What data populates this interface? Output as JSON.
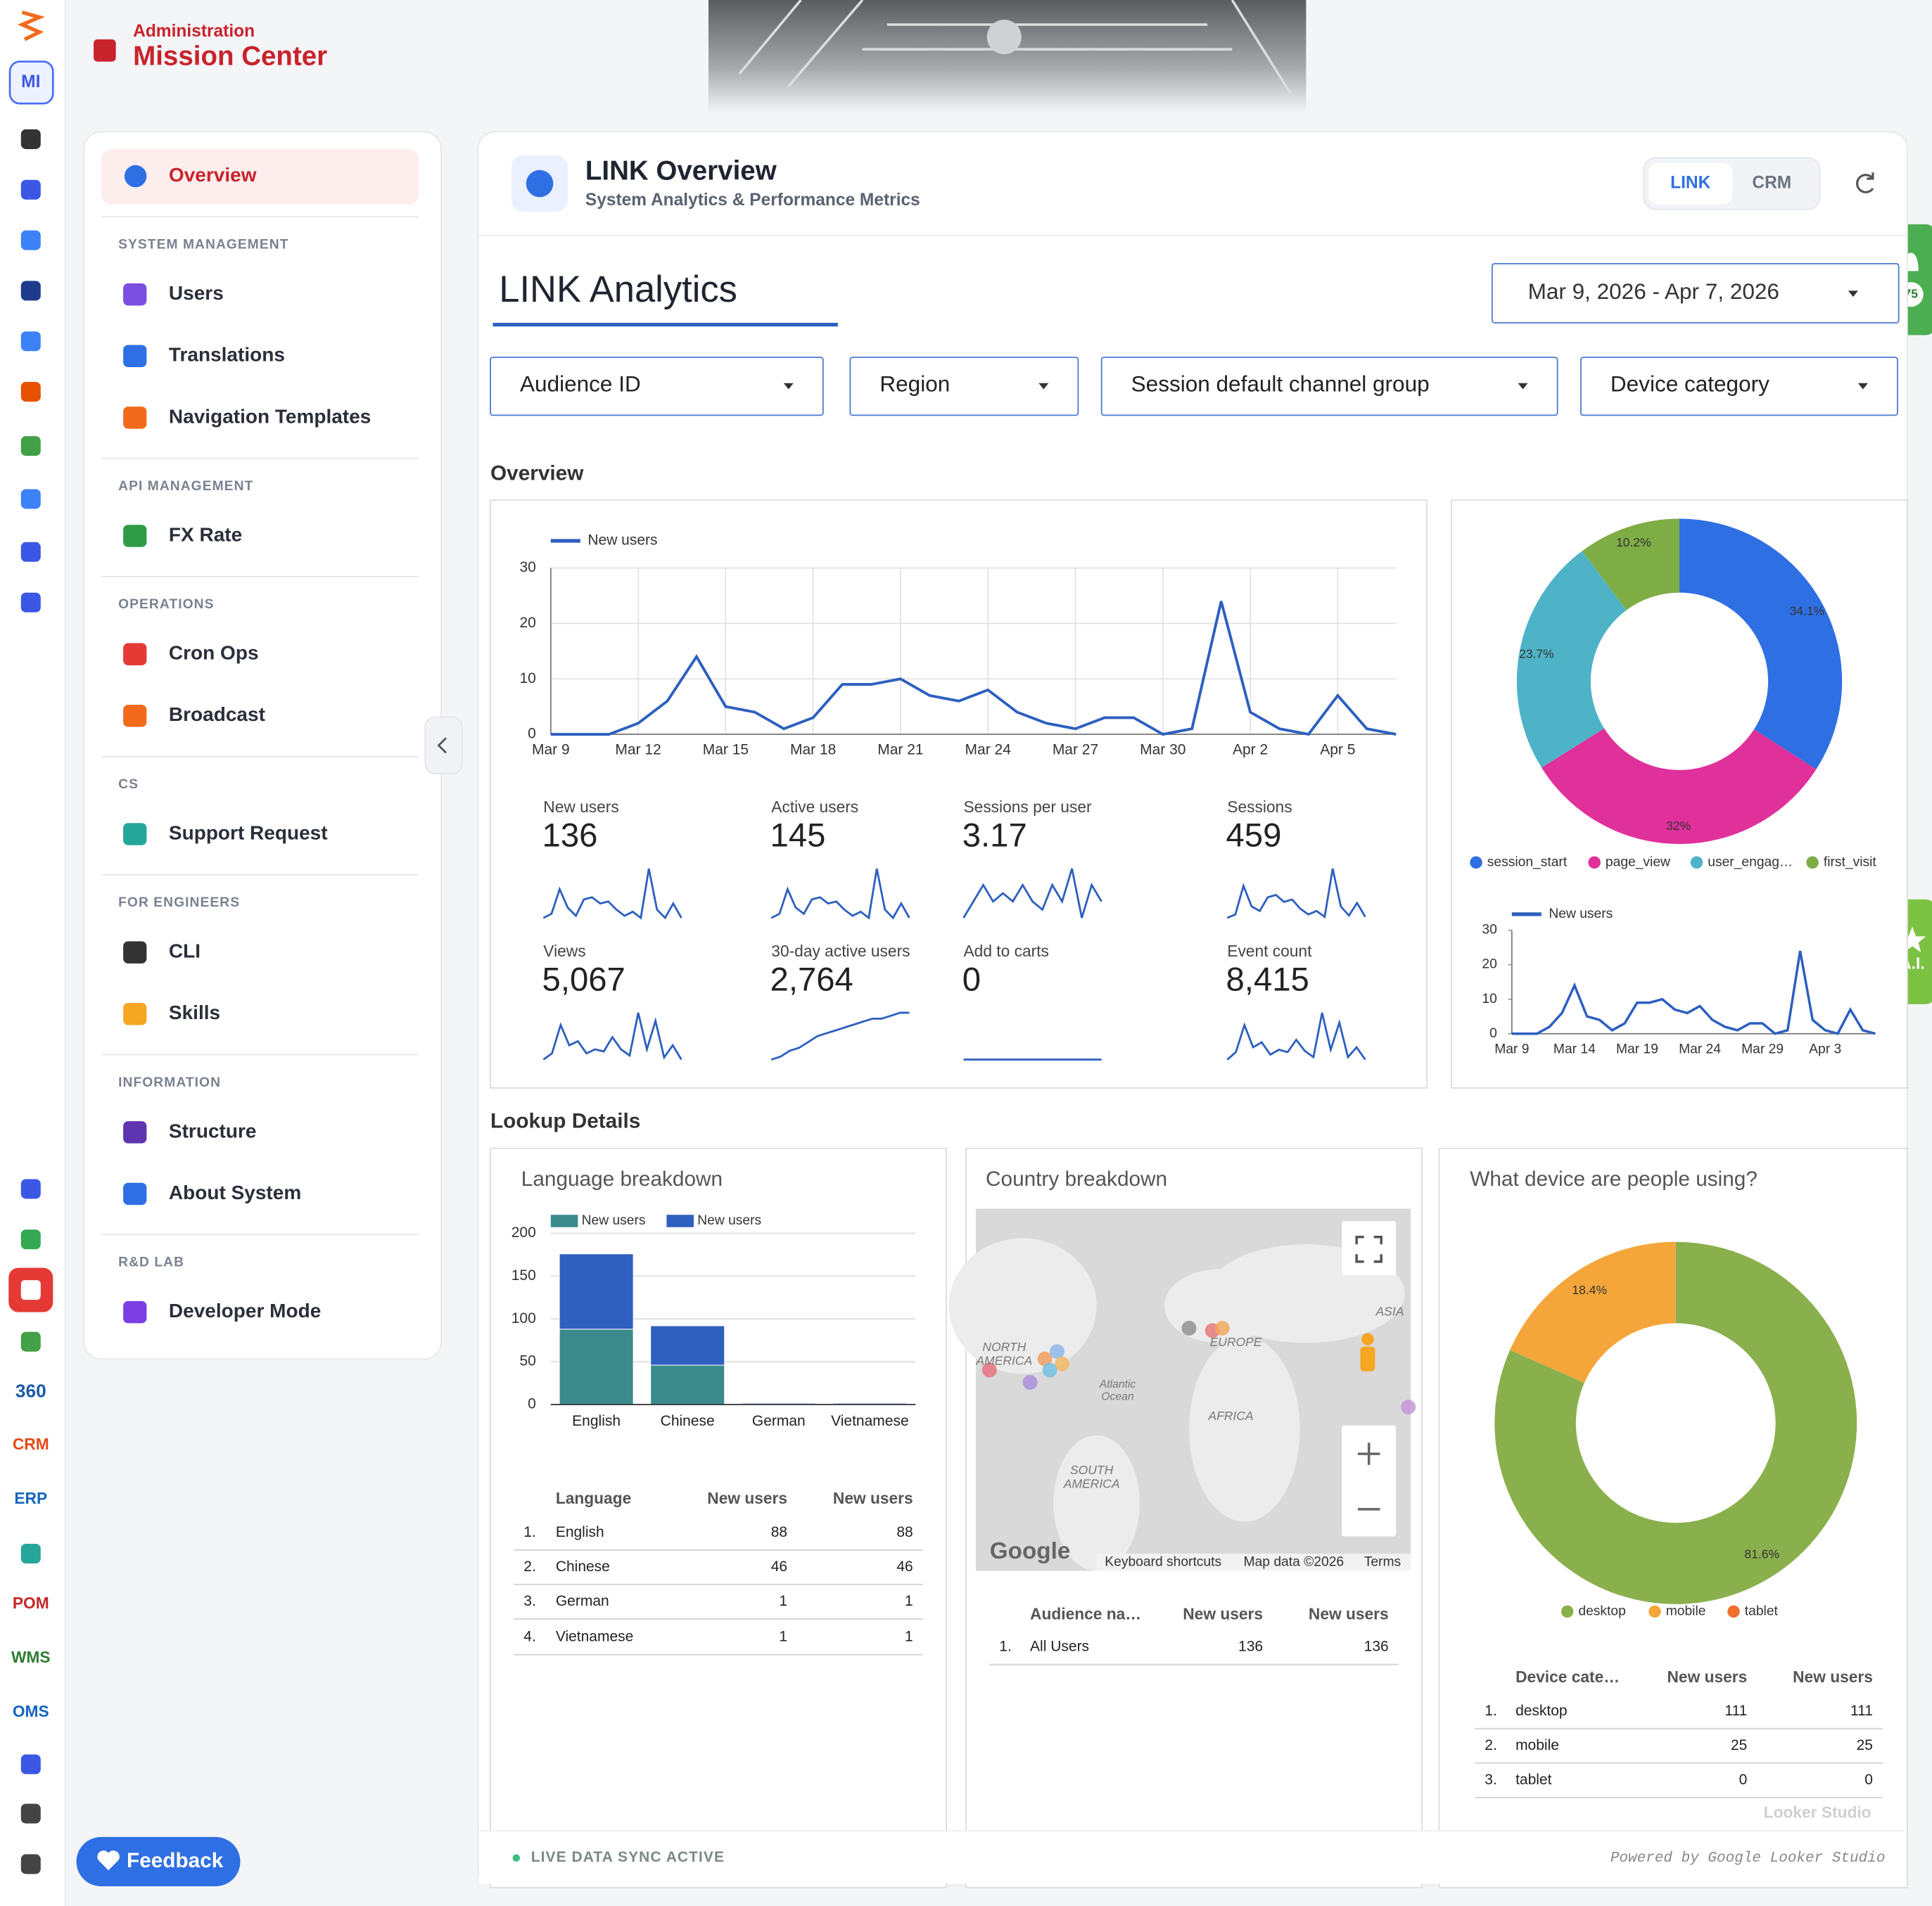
{
  "header": {
    "section": "Administration",
    "title": "Mission Center"
  },
  "rail": {
    "badge": "MI",
    "apps": [
      "360",
      "CRM",
      "ERP",
      "POM",
      "WMS",
      "OMS"
    ]
  },
  "nav": {
    "active": "Overview",
    "sections": [
      {
        "title": "SYSTEM MANAGEMENT",
        "items": [
          "Users",
          "Translations",
          "Navigation Templates"
        ]
      },
      {
        "title": "API MANAGEMENT",
        "items": [
          "FX Rate"
        ]
      },
      {
        "title": "OPERATIONS",
        "items": [
          "Cron Ops",
          "Broadcast"
        ]
      },
      {
        "title": "CS",
        "items": [
          "Support Request"
        ]
      },
      {
        "title": "FOR ENGINEERS",
        "items": [
          "CLI",
          "Skills"
        ]
      },
      {
        "title": "INFORMATION",
        "items": [
          "Structure",
          "About System"
        ]
      },
      {
        "title": "R&D LAB",
        "items": [
          "Developer Mode"
        ]
      }
    ]
  },
  "feedback": "Feedback",
  "notifications": "75",
  "ai": "A.I.",
  "page": {
    "title": "LINK Overview",
    "subtitle": "System Analytics & Performance Metrics",
    "tabs": [
      "LINK",
      "CRM"
    ],
    "report_title": "LINK Analytics",
    "date_range": "Mar 9, 2026 - Apr 7, 2026",
    "filters": [
      "Audience ID",
      "Region",
      "Session default channel group",
      "Device category"
    ],
    "overview_heading": "Overview",
    "lookup_heading": "Lookup Details",
    "footer_status": "LIVE DATA SYNC ACTIVE",
    "footer_credit": "Powered by Google Looker Studio",
    "watermark": "Looker Studio"
  },
  "kpis": [
    {
      "label": "New users",
      "value": "136",
      "trend": [
        0,
        2,
        14,
        5,
        1,
        9,
        10,
        7,
        8,
        4,
        1,
        3,
        0,
        24,
        4,
        0,
        7,
        0
      ]
    },
    {
      "label": "Active users",
      "value": "145",
      "trend": [
        1,
        3,
        15,
        6,
        3,
        10,
        11,
        8,
        9,
        5,
        2,
        4,
        1,
        25,
        5,
        1,
        8,
        1
      ]
    },
    {
      "label": "Sessions per user",
      "value": "3.17",
      "trend": [
        2,
        3,
        4,
        3,
        3.5,
        3,
        4,
        3,
        2.5,
        4,
        3,
        5,
        2,
        4,
        3
      ]
    },
    {
      "label": "Sessions",
      "value": "459",
      "trend": [
        2,
        5,
        30,
        12,
        8,
        20,
        22,
        16,
        18,
        10,
        5,
        8,
        3,
        45,
        12,
        4,
        15,
        3
      ]
    },
    {
      "label": "Views",
      "value": "5,067",
      "trend": [
        5,
        20,
        90,
        40,
        50,
        20,
        30,
        25,
        60,
        30,
        15,
        120,
        30,
        100,
        10,
        40,
        5
      ]
    },
    {
      "label": "30-day active users",
      "value": "2,764",
      "trend": [
        0,
        1,
        3,
        4,
        6,
        8,
        9,
        10,
        11,
        12,
        13,
        14,
        14,
        15,
        16,
        16
      ]
    },
    {
      "label": "Add to carts",
      "value": "0",
      "trend": [
        0,
        0,
        0,
        0,
        0,
        0,
        0,
        0,
        0,
        0,
        0,
        0
      ]
    },
    {
      "label": "Event count",
      "value": "8,415",
      "trend": [
        10,
        40,
        150,
        60,
        80,
        30,
        50,
        40,
        90,
        45,
        20,
        200,
        50,
        160,
        20,
        60,
        10
      ]
    }
  ],
  "map": {
    "title": "Country breakdown",
    "labels": [
      "ASIA",
      "EUROPE",
      "NORTH",
      "AMERICA",
      "Atlantic",
      "Ocean",
      "AFRICA",
      "SOUTH",
      "AMERICA"
    ],
    "logo": "Google",
    "attribution": [
      "Keyboard shortcuts",
      "Map data ©2026",
      "Terms"
    ]
  },
  "tables": {
    "language": {
      "columns": [
        "Language",
        "New users",
        "New users"
      ],
      "rows": [
        [
          "1.",
          "English",
          "88",
          "88"
        ],
        [
          "2.",
          "Chinese",
          "46",
          "46"
        ],
        [
          "3.",
          "German",
          "1",
          "1"
        ],
        [
          "4.",
          "Vietnamese",
          "1",
          "1"
        ]
      ]
    },
    "audience": {
      "columns": [
        "Audience na…",
        "New users",
        "New users"
      ],
      "rows": [
        [
          "1.",
          "All Users",
          "136",
          "136"
        ]
      ]
    },
    "device": {
      "columns": [
        "Device cate…",
        "New users",
        "New users"
      ],
      "rows": [
        [
          "1.",
          "desktop",
          "111",
          "111"
        ],
        [
          "2.",
          "mobile",
          "25",
          "25"
        ],
        [
          "3.",
          "tablet",
          "0",
          "0"
        ]
      ]
    }
  },
  "chart_data": [
    {
      "type": "line",
      "categories": [
        "Mar 9",
        null,
        null,
        "Mar 12",
        null,
        null,
        "Mar 15",
        null,
        null,
        "Mar 18",
        null,
        null,
        "Mar 21",
        null,
        null,
        "Mar 24",
        null,
        null,
        "Mar 27",
        null,
        null,
        "Mar 30",
        null,
        null,
        "Apr 2",
        null,
        null,
        "Apr 5",
        null,
        null
      ],
      "series": [
        {
          "name": "New users",
          "color": "#2d5fbf",
          "values": [
            0,
            0,
            0,
            2,
            6,
            14,
            5,
            4,
            1,
            3,
            9,
            9,
            10,
            7,
            6,
            8,
            4,
            2,
            1,
            3,
            3,
            0,
            1,
            24,
            4,
            1,
            0,
            7,
            1,
            0
          ]
        }
      ],
      "ylim": [
        0,
        30
      ],
      "yticks": [
        0,
        10,
        20,
        30
      ],
      "grid": true,
      "legend": "top-left"
    },
    {
      "type": "pie",
      "donut": true,
      "categories": [
        "session_start",
        "page_view",
        "user_engag…",
        "first_visit"
      ],
      "values": [
        34.1,
        32,
        23.7,
        10.2
      ],
      "value_labels": [
        "34.1%",
        "32%",
        "23.7%",
        "10.2%"
      ],
      "colors": [
        "#2f6fe4",
        "#e0309a",
        "#4fb3c8",
        "#7fad45"
      ],
      "legend": "bottom"
    },
    {
      "type": "line",
      "categories": [
        "Mar 9",
        null,
        null,
        null,
        null,
        "Mar 14",
        null,
        null,
        null,
        null,
        "Mar 19",
        null,
        null,
        null,
        null,
        "Mar 24",
        null,
        null,
        null,
        null,
        "Mar 29",
        null,
        null,
        null,
        null,
        "Apr 3",
        null,
        null,
        null,
        null
      ],
      "series": [
        {
          "name": "New users",
          "color": "#2d5fbf",
          "values": [
            0,
            0,
            0,
            2,
            6,
            14,
            5,
            4,
            1,
            3,
            9,
            9,
            10,
            7,
            6,
            8,
            4,
            2,
            1,
            3,
            3,
            0,
            1,
            24,
            4,
            1,
            0,
            7,
            1,
            0
          ]
        }
      ],
      "ylim": [
        0,
        30
      ],
      "yticks": [
        0,
        10,
        20,
        30
      ],
      "grid": false,
      "legend": "top-left"
    },
    {
      "type": "bar",
      "stacked": true,
      "title": "Language breakdown",
      "categories": [
        "English",
        "Chinese",
        "German",
        "Vietnamese"
      ],
      "series": [
        {
          "name": "New users",
          "color": "#3a8a8c",
          "values": [
            88,
            46,
            1,
            1
          ]
        },
        {
          "name": "New users",
          "color": "#2f5fbf",
          "values": [
            88,
            46,
            1,
            1
          ]
        }
      ],
      "ylim": [
        0,
        200
      ],
      "yticks": [
        0,
        50,
        100,
        150,
        200
      ],
      "grid": true,
      "legend": "top-left"
    },
    {
      "type": "pie",
      "donut": true,
      "title": "What device are people using?",
      "categories": [
        "desktop",
        "mobile",
        "tablet"
      ],
      "values": [
        81.6,
        18.4,
        0
      ],
      "value_labels": [
        "81.6%",
        "18.4%",
        null
      ],
      "colors": [
        "#8ab04e",
        "#f4a63a",
        "#f06f2c"
      ],
      "legend": "bottom"
    }
  ]
}
